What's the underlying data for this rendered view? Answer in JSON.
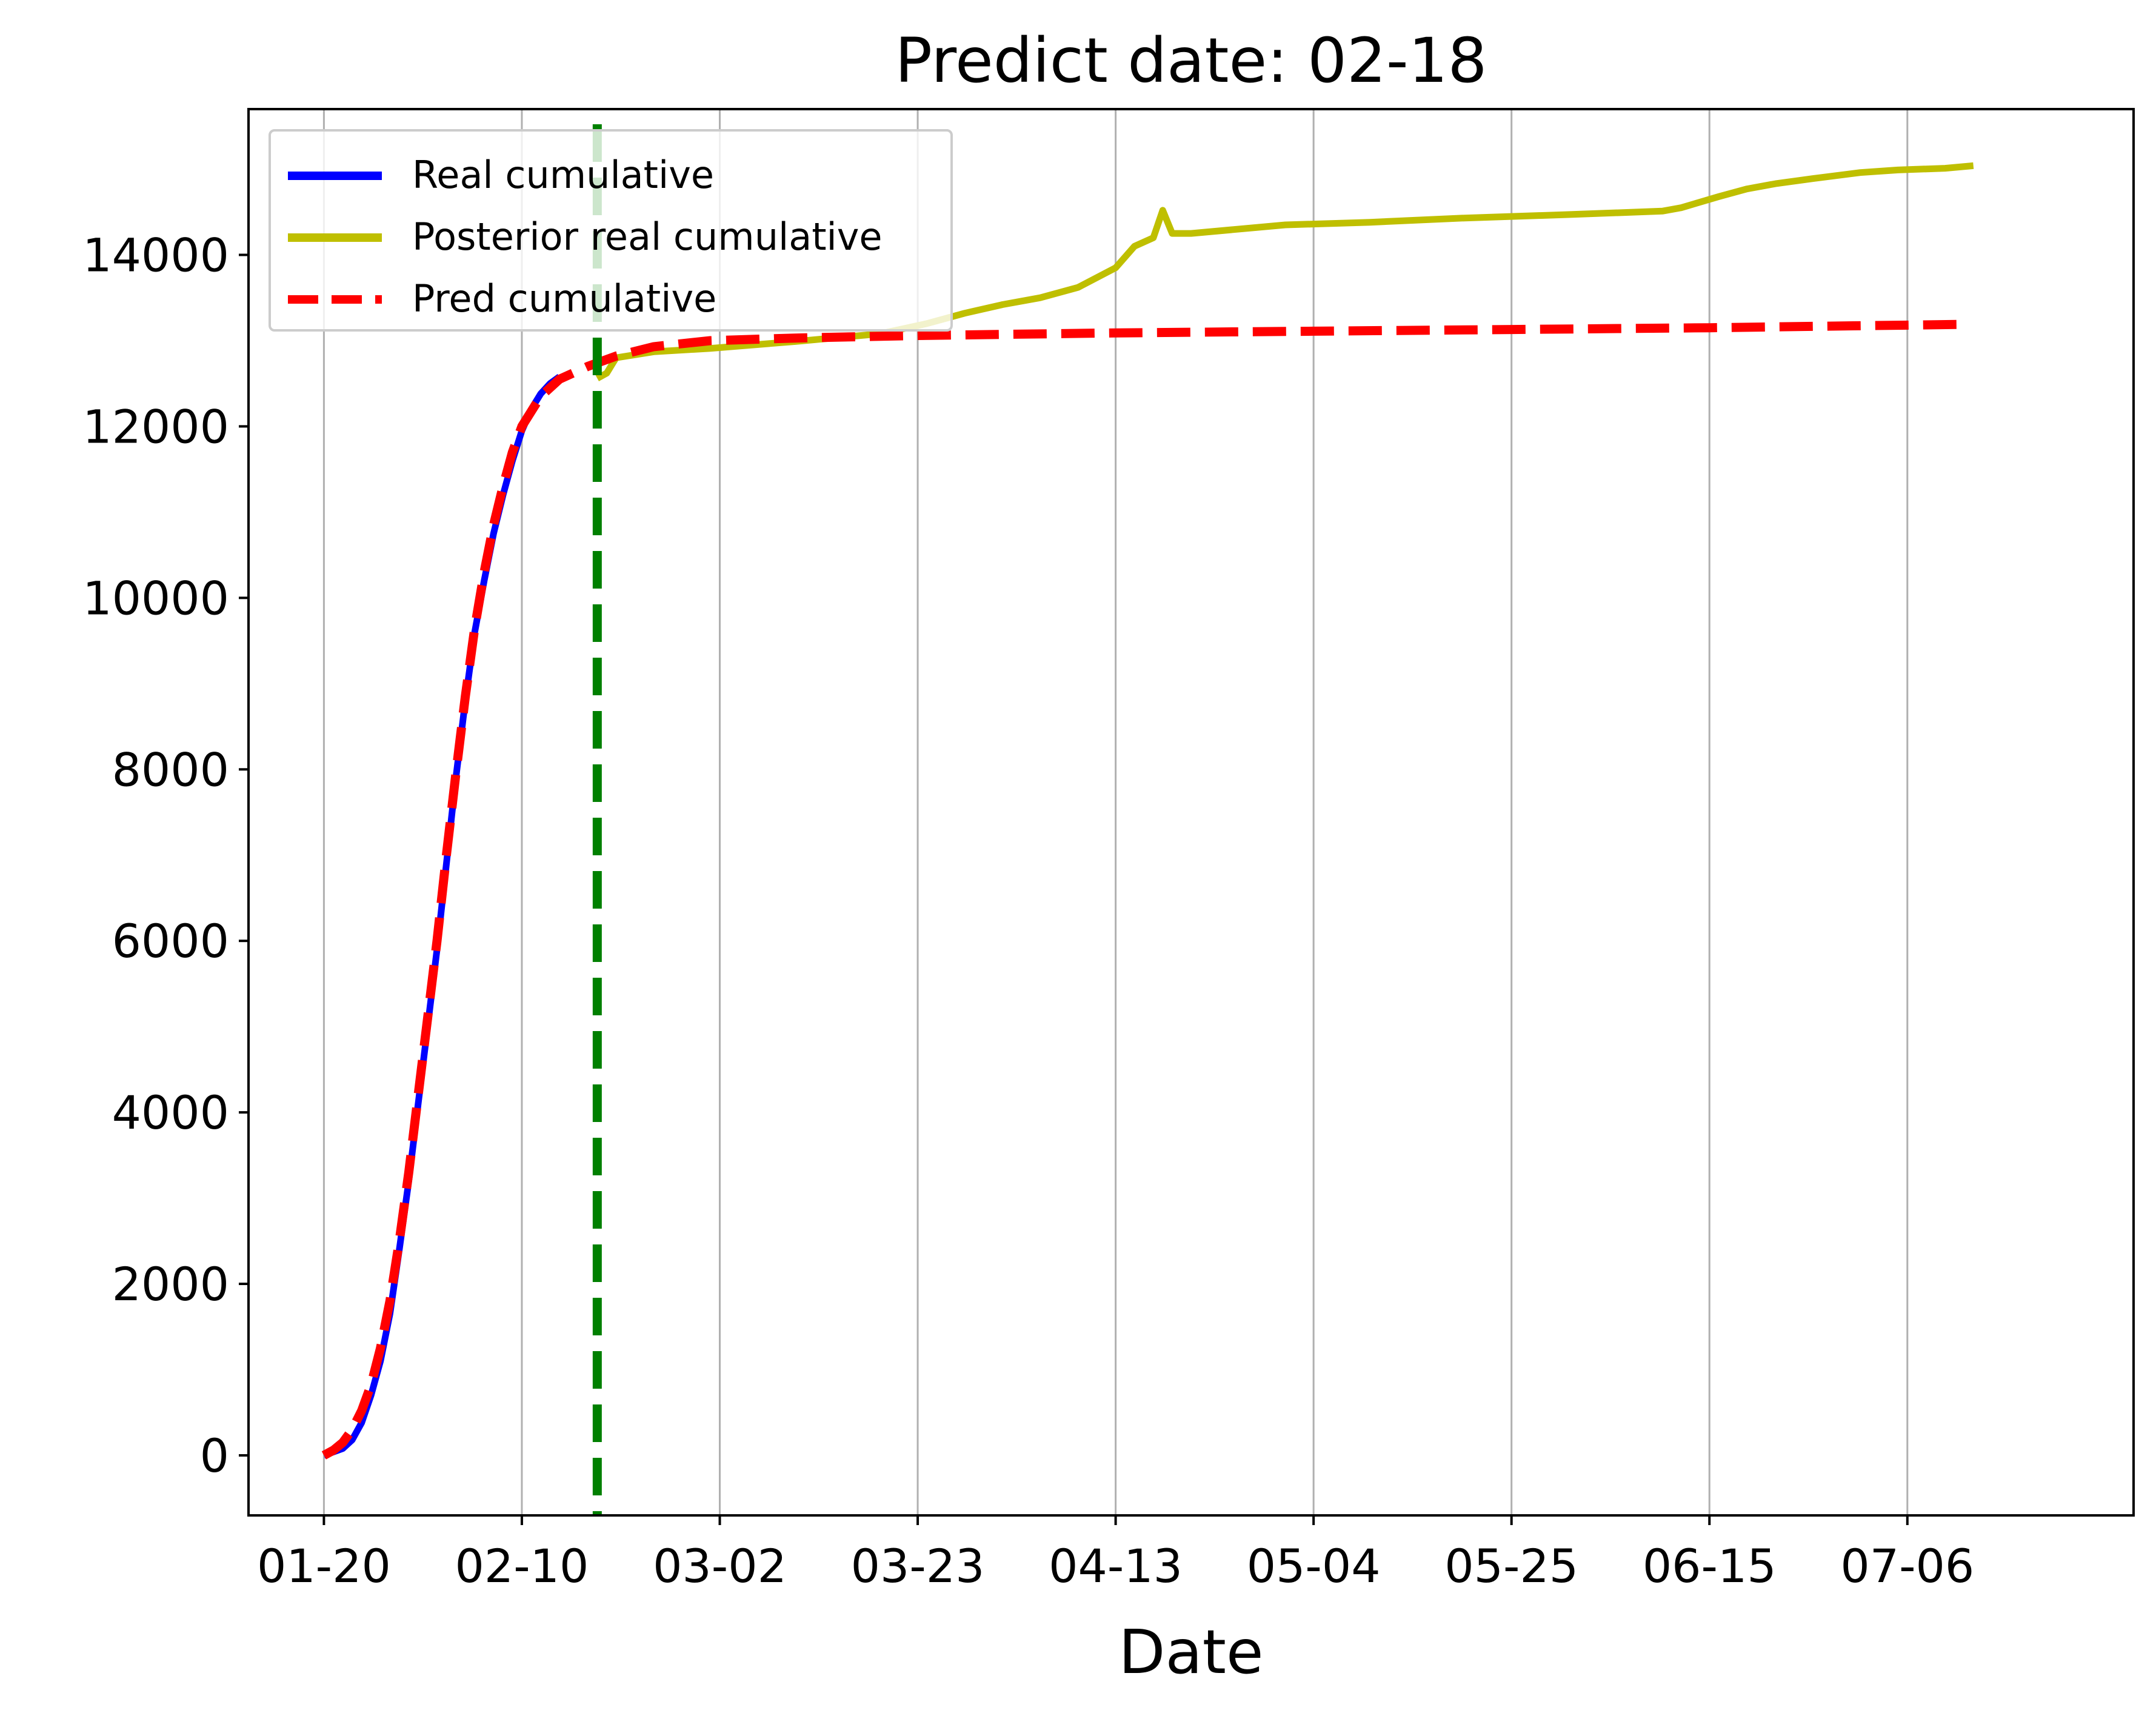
{
  "chart_data": {
    "type": "line",
    "title": "Predict date: 02-18",
    "xlabel": "Date",
    "ylabel": "",
    "x_ticks": [
      "01-20",
      "02-10",
      "03-02",
      "03-23",
      "04-13",
      "05-04",
      "05-25",
      "06-15",
      "07-06"
    ],
    "y_ticks": [
      "0",
      "2000",
      "4000",
      "6000",
      "8000",
      "10000",
      "12000",
      "14000"
    ],
    "xlim": [
      "01-12",
      "07-30"
    ],
    "ylim": [
      -700,
      15700
    ],
    "grid": "vertical",
    "legend_position": "upper-left",
    "predict_marker": {
      "date": "02-18",
      "color": "#008000"
    },
    "series": [
      {
        "name": "Real cumulative",
        "color": "#0000ff",
        "style": "solid",
        "points": [
          [
            "01-20",
            0
          ],
          [
            "01-21",
            40
          ],
          [
            "01-22",
            80
          ],
          [
            "01-23",
            180
          ],
          [
            "01-24",
            380
          ],
          [
            "01-25",
            700
          ],
          [
            "01-26",
            1100
          ],
          [
            "01-27",
            1650
          ],
          [
            "01-28",
            2400
          ],
          [
            "01-29",
            3200
          ],
          [
            "01-30",
            4100
          ],
          [
            "01-31",
            5000
          ],
          [
            "02-01",
            5900
          ],
          [
            "02-02",
            6900
          ],
          [
            "02-03",
            7900
          ],
          [
            "02-04",
            8800
          ],
          [
            "02-05",
            9600
          ],
          [
            "02-06",
            10200
          ],
          [
            "02-07",
            10750
          ],
          [
            "02-08",
            11200
          ],
          [
            "02-09",
            11600
          ],
          [
            "02-10",
            11950
          ],
          [
            "02-11",
            12200
          ],
          [
            "02-12",
            12380
          ],
          [
            "02-13",
            12500
          ],
          [
            "02-14",
            12580
          ]
        ]
      },
      {
        "name": "Posterior real cumulative",
        "color": "#bfbf00",
        "style": "solid",
        "points": [
          [
            "02-18",
            12560
          ],
          [
            "02-19",
            12620
          ],
          [
            "02-20",
            12800
          ],
          [
            "02-24",
            12870
          ],
          [
            "03-01",
            12910
          ],
          [
            "03-10",
            12990
          ],
          [
            "03-19",
            13080
          ],
          [
            "03-24",
            13200
          ],
          [
            "03-28",
            13320
          ],
          [
            "04-01",
            13420
          ],
          [
            "04-05",
            13500
          ],
          [
            "04-09",
            13620
          ],
          [
            "04-13",
            13850
          ],
          [
            "04-15",
            14100
          ],
          [
            "04-17",
            14200
          ],
          [
            "04-18",
            14520
          ],
          [
            "04-19",
            14250
          ],
          [
            "04-21",
            14250
          ],
          [
            "05-01",
            14350
          ],
          [
            "05-10",
            14380
          ],
          [
            "05-20",
            14430
          ],
          [
            "05-31",
            14470
          ],
          [
            "06-10",
            14510
          ],
          [
            "06-12",
            14550
          ],
          [
            "06-16",
            14680
          ],
          [
            "06-19",
            14770
          ],
          [
            "06-22",
            14830
          ],
          [
            "06-26",
            14890
          ],
          [
            "07-01",
            14960
          ],
          [
            "07-05",
            14990
          ],
          [
            "07-10",
            15010
          ],
          [
            "07-13",
            15040
          ]
        ]
      },
      {
        "name": "Pred cumulative",
        "color": "#ff0000",
        "style": "dashed",
        "points": [
          [
            "01-20",
            0
          ],
          [
            "01-21",
            60
          ],
          [
            "01-22",
            150
          ],
          [
            "01-23",
            300
          ],
          [
            "01-24",
            520
          ],
          [
            "01-25",
            820
          ],
          [
            "01-26",
            1250
          ],
          [
            "01-27",
            1800
          ],
          [
            "01-28",
            2500
          ],
          [
            "01-29",
            3300
          ],
          [
            "01-30",
            4200
          ],
          [
            "01-31",
            5100
          ],
          [
            "02-01",
            6000
          ],
          [
            "02-02",
            7000
          ],
          [
            "02-03",
            7950
          ],
          [
            "02-04",
            8850
          ],
          [
            "02-05",
            9650
          ],
          [
            "02-06",
            10300
          ],
          [
            "02-07",
            10850
          ],
          [
            "02-08",
            11300
          ],
          [
            "02-09",
            11700
          ],
          [
            "02-10",
            12000
          ],
          [
            "02-12",
            12350
          ],
          [
            "02-14",
            12550
          ],
          [
            "02-17",
            12700
          ],
          [
            "02-20",
            12820
          ],
          [
            "02-24",
            12930
          ],
          [
            "03-01",
            13000
          ],
          [
            "03-10",
            13030
          ],
          [
            "03-23",
            13060
          ],
          [
            "04-13",
            13090
          ],
          [
            "05-04",
            13110
          ],
          [
            "05-25",
            13130
          ],
          [
            "06-15",
            13150
          ],
          [
            "07-12",
            13190
          ]
        ]
      }
    ]
  }
}
